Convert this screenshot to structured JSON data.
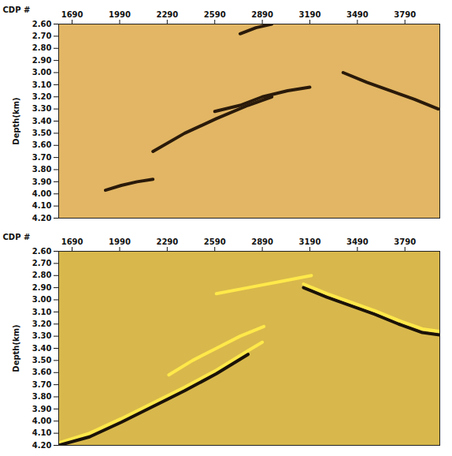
{
  "chart_data": [
    {
      "type": "line",
      "x_label": "CDP #",
      "y_label": "Depth(km)",
      "color": "#e2b664",
      "xlim": [
        1605,
        4010
      ],
      "xticks": [
        1690,
        1990,
        2290,
        2590,
        2890,
        3190,
        3490,
        3790
      ],
      "ylim": [
        2.6,
        4.2
      ],
      "yticks": [
        {
          "value": 2.6,
          "label": "2.60"
        },
        {
          "value": 2.7,
          "label": "2.70"
        },
        {
          "value": 2.8,
          "label": "2.80"
        },
        {
          "value": 2.9,
          "label": "2.90"
        },
        {
          "value": 3.0,
          "label": "3.00"
        },
        {
          "value": 3.1,
          "label": "3.10"
        },
        {
          "value": 3.2,
          "label": "3.20"
        },
        {
          "value": 3.3,
          "label": "3.30"
        },
        {
          "value": 3.4,
          "label": "3.40"
        },
        {
          "value": 3.5,
          "label": "3.50"
        },
        {
          "value": 3.6,
          "label": "3.60"
        },
        {
          "value": 3.7,
          "label": "3.70"
        },
        {
          "value": 3.8,
          "label": "3.80"
        },
        {
          "value": 3.9,
          "label": "3.90"
        },
        {
          "value": 4.0,
          "label": "4.00"
        },
        {
          "value": 4.1,
          "label": "4.10"
        },
        {
          "value": 4.2,
          "label": "4.20"
        }
      ],
      "series": [
        {
          "color": "#2a1a0a",
          "x": [
            2200,
            2400,
            2600,
            2800,
            2950
          ],
          "values": [
            3.65,
            3.5,
            3.38,
            3.27,
            3.2
          ]
        },
        {
          "color": "#2a1a0a",
          "x": [
            2590,
            2750,
            2890,
            3050,
            3190
          ],
          "values": [
            3.32,
            3.27,
            3.2,
            3.15,
            3.12
          ]
        },
        {
          "color": "#2a1a0a",
          "x": [
            1900,
            2000,
            2100,
            2200
          ],
          "values": [
            3.97,
            3.93,
            3.9,
            3.88
          ]
        },
        {
          "color": "#2a1a0a",
          "x": [
            3400,
            3550,
            3700,
            3850,
            4000
          ],
          "values": [
            3.0,
            3.08,
            3.15,
            3.22,
            3.3
          ]
        },
        {
          "color": "#2a1a0a",
          "x": [
            2750,
            2850,
            2950
          ],
          "values": [
            2.68,
            2.63,
            2.6
          ]
        }
      ]
    },
    {
      "type": "line",
      "x_label": "CDP #",
      "y_label": "Depth(km)",
      "color": "#d8b84c",
      "xlim": [
        1605,
        4010
      ],
      "xticks": [
        1690,
        1990,
        2290,
        2590,
        2890,
        3190,
        3490,
        3790
      ],
      "ylim": [
        2.6,
        4.2
      ],
      "yticks": [
        {
          "value": 2.6,
          "label": "2.60"
        },
        {
          "value": 2.7,
          "label": "2.70"
        },
        {
          "value": 2.8,
          "label": "2.80"
        },
        {
          "value": 2.9,
          "label": "2.90"
        },
        {
          "value": 3.0,
          "label": "3.00"
        },
        {
          "value": 3.1,
          "label": "3.10"
        },
        {
          "value": 3.2,
          "label": "3.20"
        },
        {
          "value": 3.3,
          "label": "3.30"
        },
        {
          "value": 3.4,
          "label": "3.40"
        },
        {
          "value": 3.5,
          "label": "3.50"
        },
        {
          "value": 3.6,
          "label": "3.60"
        },
        {
          "value": 3.7,
          "label": "3.70"
        },
        {
          "value": 3.8,
          "label": "3.80"
        },
        {
          "value": 3.9,
          "label": "3.90"
        },
        {
          "value": 4.0,
          "label": "4.00"
        },
        {
          "value": 4.1,
          "label": "4.10"
        },
        {
          "value": 4.2,
          "label": "4.20"
        }
      ],
      "series": [
        {
          "color": "#ffe94a",
          "x": [
            1605,
            1800,
            2000,
            2200,
            2400,
            2600,
            2800,
            2890
          ],
          "values": [
            4.18,
            4.1,
            3.98,
            3.85,
            3.72,
            3.58,
            3.42,
            3.35
          ]
        },
        {
          "color": "#1a1208",
          "x": [
            1605,
            1800,
            2000,
            2200,
            2400,
            2600,
            2800
          ],
          "values": [
            4.2,
            4.13,
            4.01,
            3.88,
            3.75,
            3.61,
            3.45
          ]
        },
        {
          "color": "#ffe94a",
          "x": [
            2300,
            2450,
            2600,
            2750,
            2900
          ],
          "values": [
            3.62,
            3.5,
            3.4,
            3.3,
            3.22
          ]
        },
        {
          "color": "#1a1208",
          "x": [
            3150,
            3300,
            3450,
            3600,
            3750,
            3900,
            4010
          ],
          "values": [
            2.9,
            2.98,
            3.05,
            3.12,
            3.2,
            3.27,
            3.29
          ]
        },
        {
          "color": "#ffe94a",
          "x": [
            3150,
            3300,
            3450,
            3600,
            3750,
            3900,
            4010
          ],
          "values": [
            2.87,
            2.95,
            3.02,
            3.09,
            3.17,
            3.24,
            3.26
          ]
        },
        {
          "color": "#ffe94a",
          "x": [
            2600,
            2800,
            3000,
            3200
          ],
          "values": [
            2.95,
            2.9,
            2.85,
            2.8
          ]
        }
      ]
    }
  ]
}
